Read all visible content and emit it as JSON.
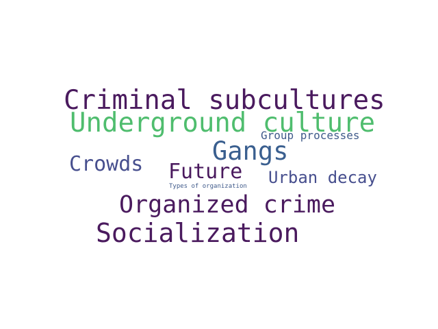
{
  "words": [
    {
      "id": "criminal",
      "text": "Criminal subcultures",
      "color": "#4a1a5e"
    },
    {
      "id": "underground",
      "text": "Underground culture",
      "color": "#4fbd6e"
    },
    {
      "id": "group",
      "text": "Group processes",
      "color": "#3f5a8a"
    },
    {
      "id": "gangs",
      "text": "Gangs",
      "color": "#3a5f8f"
    },
    {
      "id": "crowds",
      "text": "Crowds",
      "color": "#474f8e"
    },
    {
      "id": "future",
      "text": "Future",
      "color": "#4a1a5e"
    },
    {
      "id": "urban",
      "text": "Urban decay",
      "color": "#474f8e"
    },
    {
      "id": "types",
      "text": "Types of organization",
      "color": "#3f5a8a"
    },
    {
      "id": "organized",
      "text": "Organized crime",
      "color": "#4a1a5e"
    },
    {
      "id": "socialization",
      "text": "Socialization",
      "color": "#4a1a5e"
    }
  ]
}
